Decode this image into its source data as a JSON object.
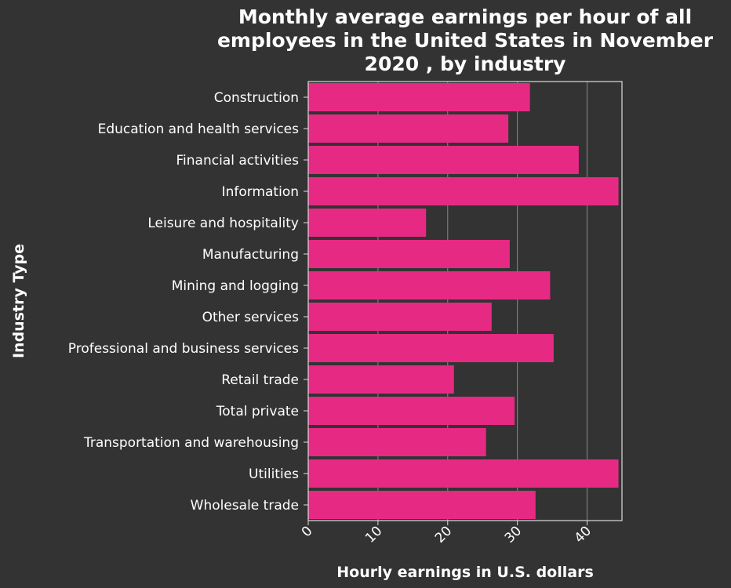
{
  "chart_data": {
    "type": "bar",
    "orientation": "horizontal",
    "title_lines": [
      "Monthly average earnings per hour of all",
      "employees in the United States in November",
      "2020 , by industry"
    ],
    "xlabel": "Hourly earnings in U.S. dollars",
    "ylabel": "Industry Type",
    "categories": [
      "Construction",
      "Education and health services",
      "Financial activities",
      "Information",
      "Leisure and hospitality",
      "Manufacturing",
      "Mining and logging",
      "Other services",
      "Professional and business services",
      "Retail trade",
      "Total private",
      "Transportation and warehousing",
      "Utilities",
      "Wholesale trade"
    ],
    "values": [
      31.8,
      28.7,
      38.8,
      44.5,
      16.9,
      28.9,
      34.7,
      26.3,
      35.2,
      20.9,
      29.6,
      25.5,
      44.5,
      32.6
    ],
    "xlim": [
      0,
      45
    ],
    "xticks": [
      "0",
      "10",
      "20",
      "30",
      "40"
    ],
    "grid": "vertical",
    "bar_color": "#e62a84",
    "background": "#333333",
    "gridline_color": "#888888"
  }
}
